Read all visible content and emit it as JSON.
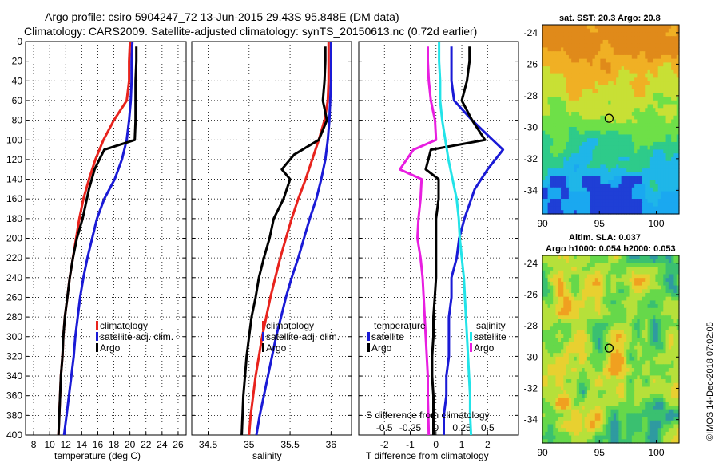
{
  "titles": {
    "line1": "Argo profile: csiro 5904247_72 13-Jun-2015 29.43S 95.848E (DM data)",
    "line2": "Climatology: CARS2009. Satellite-adjusted climatology: synTS_20150613.nc (0.72d earlier)"
  },
  "colors": {
    "climatology": "#e8231d",
    "satellite": "#1a1ad6",
    "argo": "#000000",
    "sat_salinity": "#22e3e8",
    "argo_salinity": "#e81ee0"
  },
  "depth_axis": {
    "range": [
      0,
      400
    ],
    "ticks": [
      "0",
      "20",
      "40",
      "60",
      "80",
      "100",
      "120",
      "140",
      "160",
      "180",
      "200",
      "220",
      "240",
      "260",
      "280",
      "300",
      "320",
      "340",
      "360",
      "380",
      "400"
    ]
  },
  "temperature_panel": {
    "xlabel": "temperature (deg C)",
    "range": [
      7,
      27
    ],
    "ticks": [
      "8",
      "10",
      "12",
      "14",
      "16",
      "18",
      "20",
      "22",
      "24",
      "26"
    ],
    "legend": [
      "climatology",
      "satellite-adj. clim.",
      "Argo"
    ],
    "series": {
      "climatology": {
        "t": [
          20,
          19.9,
          19.9,
          19.6,
          18,
          16.7,
          15.7,
          14.9,
          14.2,
          13.7,
          13.3,
          12.9,
          12.5,
          12.2,
          11.9,
          11.7,
          11.6,
          11.4,
          11.3,
          11.2,
          11.1
        ],
        "d": [
          0,
          20,
          40,
          60,
          80,
          100,
          120,
          140,
          160,
          180,
          200,
          220,
          240,
          260,
          280,
          300,
          320,
          340,
          360,
          380,
          400
        ]
      },
      "satellite": {
        "t": [
          20.3,
          20.2,
          20.2,
          20.1,
          19.9,
          19.6,
          19,
          18.1,
          16.8,
          15.9,
          15.3,
          14.7,
          14.2,
          13.8,
          13.5,
          13.2,
          13,
          12.7,
          12.4,
          12.1,
          11.8
        ],
        "d": [
          0,
          20,
          40,
          60,
          80,
          100,
          120,
          140,
          160,
          180,
          200,
          220,
          240,
          260,
          280,
          300,
          320,
          340,
          360,
          380,
          400
        ]
      },
      "argo": {
        "t": [
          20.8,
          20.8,
          20.7,
          20.7,
          20.7,
          20.6,
          16.8,
          15.6,
          14.9,
          14.1,
          13.4,
          12.9,
          12.5,
          12.2,
          11.9,
          11.7,
          11.6,
          11.4,
          11.3,
          11.2,
          11.1
        ],
        "d": [
          5,
          20,
          40,
          60,
          80,
          100,
          110,
          130,
          150,
          180,
          200,
          220,
          240,
          260,
          280,
          300,
          320,
          340,
          360,
          380,
          400
        ]
      }
    }
  },
  "salinity_panel": {
    "xlabel": "salinity",
    "range": [
      34.3,
      36.25
    ],
    "ticks": [
      "34.5",
      "35",
      "35.5",
      "36"
    ],
    "legend": [
      "climatology",
      "satellite-adj. clim.",
      "Argo"
    ],
    "series": {
      "climatology": {
        "s": [
          35.97,
          35.97,
          35.97,
          35.96,
          35.92,
          35.85,
          35.77,
          35.69,
          35.6,
          35.52,
          35.45,
          35.38,
          35.32,
          35.26,
          35.21,
          35.16,
          35.12,
          35.08,
          35.05,
          35.02,
          35.0
        ],
        "d": [
          0,
          20,
          40,
          60,
          80,
          100,
          120,
          140,
          160,
          180,
          200,
          220,
          240,
          260,
          280,
          300,
          320,
          340,
          360,
          380,
          400
        ]
      },
      "satellite": {
        "s": [
          36.0,
          36.0,
          36.0,
          35.99,
          35.98,
          35.96,
          35.93,
          35.88,
          35.82,
          35.74,
          35.67,
          35.6,
          35.52,
          35.45,
          35.39,
          35.33,
          35.28,
          35.23,
          35.18,
          35.13,
          35.09
        ],
        "d": [
          0,
          20,
          40,
          60,
          80,
          100,
          120,
          140,
          160,
          180,
          200,
          220,
          240,
          260,
          280,
          300,
          320,
          340,
          360,
          380,
          400
        ]
      },
      "argo": {
        "s": [
          35.93,
          35.93,
          35.92,
          35.9,
          35.95,
          35.85,
          35.55,
          35.4,
          35.5,
          35.42,
          35.3,
          35.25,
          35.18,
          35.12,
          35.08,
          35.03,
          35.0,
          34.97,
          34.95,
          34.93,
          34.91
        ],
        "d": [
          5,
          20,
          40,
          60,
          80,
          100,
          115,
          130,
          140,
          160,
          180,
          200,
          220,
          240,
          260,
          280,
          300,
          320,
          340,
          360,
          400
        ]
      }
    }
  },
  "difference_panel": {
    "xlabel": "T difference from climatology",
    "top_label": "S difference from climatology",
    "t_range": [
      -3,
      3.2
    ],
    "t_ticks": [
      "-2",
      "-1",
      "0",
      "1",
      "2"
    ],
    "s_ticks": [
      "-0.5",
      "-0.25",
      "0",
      "0.25",
      "0.5"
    ],
    "legend_temperature_title": "temperature",
    "legend_salinity_title": "salinity",
    "legend_temperature": [
      "satellite",
      "Argo"
    ],
    "legend_salinity": [
      "satellite",
      "Argo"
    ],
    "series": {
      "t_satellite": {
        "v": [
          0.6,
          0.6,
          0.6,
          0.7,
          1.4,
          2.2,
          2.6,
          2.0,
          1.5,
          1.1,
          0.9,
          0.8,
          0.6,
          0.6,
          0.5,
          0.5,
          0.5,
          0.4,
          0.4,
          0.3,
          0.3
        ],
        "d": [
          5,
          20,
          40,
          60,
          80,
          100,
          110,
          130,
          150,
          180,
          200,
          220,
          240,
          260,
          280,
          300,
          320,
          340,
          360,
          380,
          400
        ]
      },
      "t_argo": {
        "v": [
          1.3,
          1.3,
          1.2,
          1.0,
          1.4,
          1.9,
          -0.2,
          -0.4,
          0.1,
          0.1,
          0.0,
          0.0,
          0.0,
          0.0,
          -0.05,
          -0.1,
          -0.1,
          -0.15,
          -0.15,
          -0.1,
          -0.1
        ],
        "d": [
          5,
          20,
          40,
          60,
          80,
          100,
          110,
          130,
          140,
          160,
          180,
          200,
          220,
          240,
          260,
          280,
          300,
          320,
          340,
          360,
          400
        ]
      },
      "s_satellite": {
        "v": [
          0.03,
          0.03,
          0.04,
          0.04,
          0.06,
          0.09,
          0.12,
          0.16,
          0.2,
          0.22,
          0.23,
          0.25,
          0.27,
          0.28,
          0.29,
          0.3,
          0.31,
          0.32,
          0.33,
          0.33,
          0.34
        ],
        "d": [
          0,
          20,
          40,
          60,
          80,
          100,
          120,
          140,
          160,
          180,
          200,
          220,
          240,
          260,
          280,
          300,
          320,
          340,
          360,
          380,
          400
        ]
      },
      "s_argo": {
        "v": [
          -0.08,
          -0.08,
          -0.07,
          -0.05,
          -0.01,
          0.0,
          -0.22,
          -0.35,
          -0.14,
          -0.15,
          -0.17,
          -0.18,
          -0.15,
          -0.13,
          -0.12,
          -0.11,
          -0.1,
          -0.09,
          -0.08,
          -0.08,
          -0.07
        ],
        "d": [
          5,
          20,
          40,
          60,
          80,
          100,
          110,
          130,
          140,
          160,
          180,
          200,
          220,
          240,
          260,
          280,
          300,
          320,
          340,
          360,
          400
        ]
      }
    }
  },
  "sst_map": {
    "title": "sat. SST: 20.3 Argo: 20.8",
    "x_ticks": [
      "90",
      "95",
      "100"
    ],
    "y_ticks": [
      "-24",
      "-26",
      "-28",
      "-30",
      "-32",
      "-34"
    ],
    "lon_range": [
      90,
      102
    ],
    "lat_range": [
      -35.5,
      -23.5
    ],
    "argo_position": {
      "lon": 95.85,
      "lat": -29.43
    }
  },
  "sla_map": {
    "title_line1": "Altim. SLA: 0.037",
    "title_line2": "Argo h1000: 0.054 h2000: 0.053",
    "x_ticks": [
      "90",
      "95",
      "100"
    ],
    "y_ticks": [
      "-24",
      "-26",
      "-28",
      "-30",
      "-32",
      "-34"
    ],
    "argo_position": {
      "lon": 95.85,
      "lat": -29.43
    }
  },
  "watermark": "©IMOS 14-Dec-2018 07:02:05"
}
